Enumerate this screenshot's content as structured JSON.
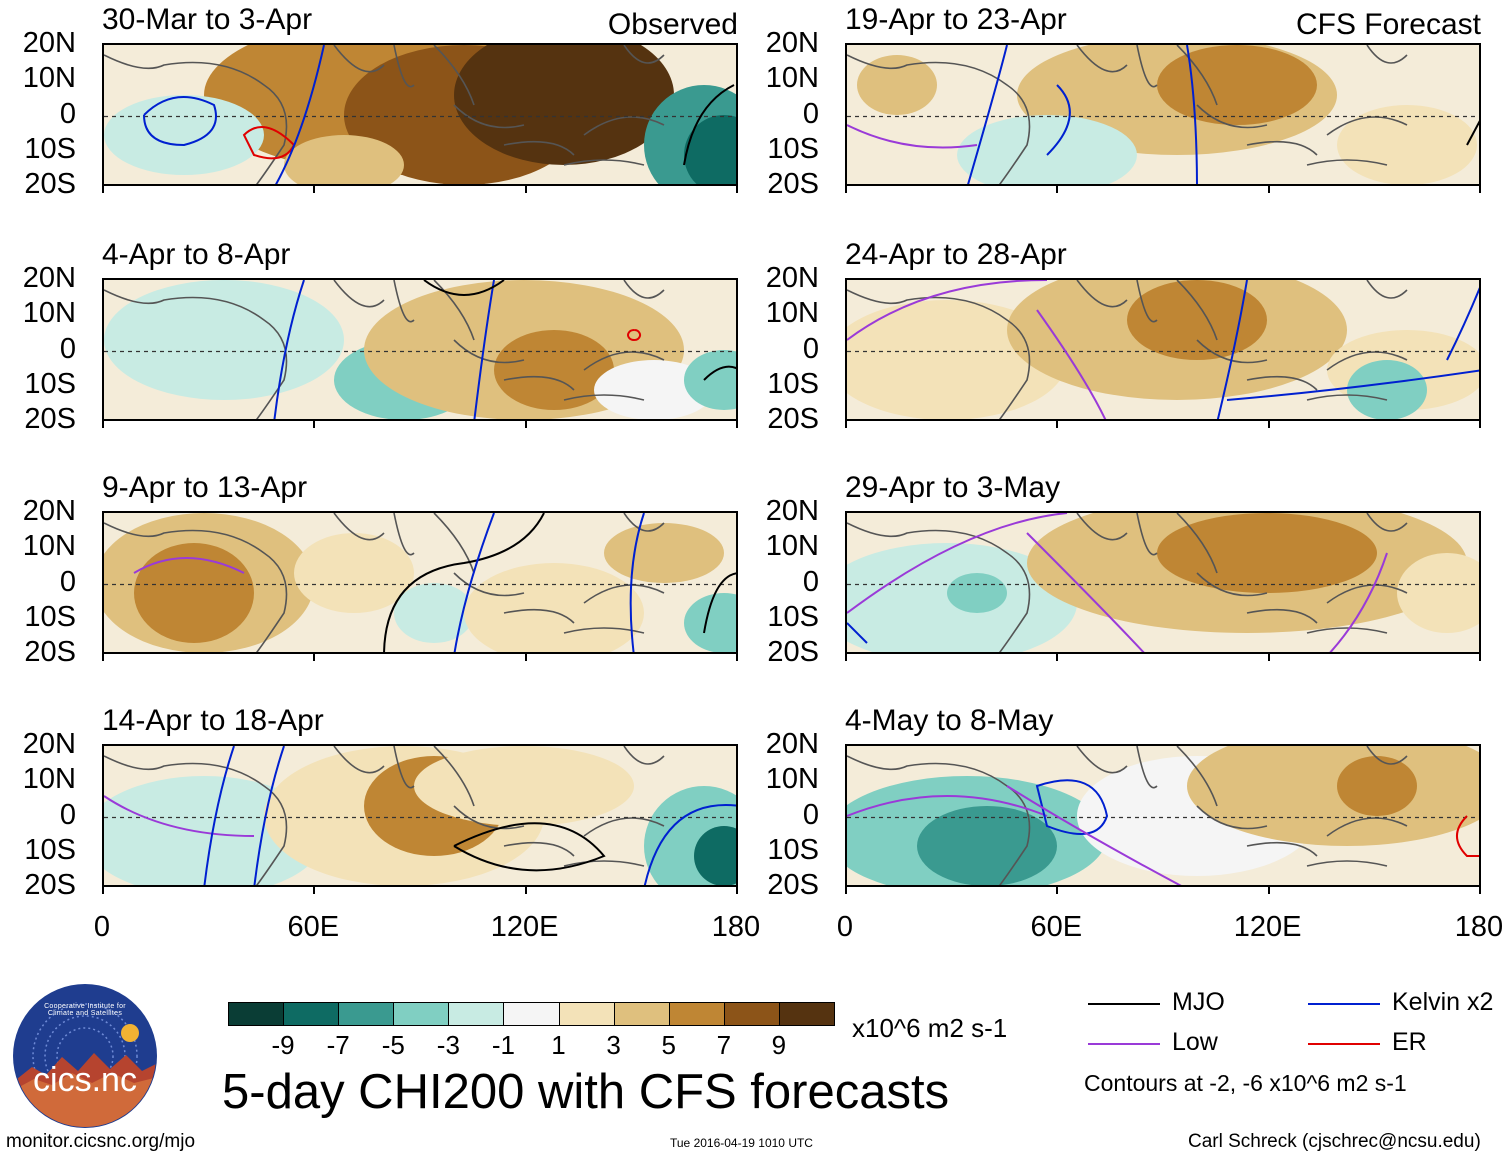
{
  "panels": [
    {
      "title": "30-Mar to 3-Apr",
      "tag": "Observed"
    },
    {
      "title": "4-Apr to 8-Apr",
      "tag": ""
    },
    {
      "title": "9-Apr to 13-Apr",
      "tag": ""
    },
    {
      "title": "14-Apr to 18-Apr",
      "tag": ""
    },
    {
      "title": "19-Apr to 23-Apr",
      "tag": "CFS Forecast"
    },
    {
      "title": "24-Apr to 28-Apr",
      "tag": ""
    },
    {
      "title": "29-Apr to 3-May",
      "tag": ""
    },
    {
      "title": "4-May to 8-May",
      "tag": ""
    }
  ],
  "axes": {
    "lat_labels": [
      "20N",
      "10N",
      "0",
      "10S",
      "20S"
    ],
    "lon_labels": [
      "0",
      "60E",
      "120E",
      "180"
    ]
  },
  "colorbar": {
    "labels": [
      "-9",
      "-7",
      "-5",
      "-3",
      "-1",
      "1",
      "3",
      "5",
      "7",
      "9"
    ],
    "colors": [
      "#0a3d35",
      "#0e6b63",
      "#3a9a90",
      "#80cfc2",
      "#c8ebe3",
      "#f5f5f5",
      "#f3e2b8",
      "#dfc07e",
      "#bf8634",
      "#8c5418",
      "#553310"
    ],
    "units": "x10^6 m2 s-1"
  },
  "legend": {
    "items": [
      {
        "label": "MJO",
        "color": "#000000"
      },
      {
        "label": "Kelvin x2",
        "color": "#0020d0"
      },
      {
        "label": "Low",
        "color": "#9a3ad8"
      },
      {
        "label": "ER",
        "color": "#e00000"
      }
    ],
    "contour_note": "Contours at -2, -6 x10^6 m2 s-1"
  },
  "logo": {
    "text": "cics.nc",
    "ring_text": "Cooperative Institute for Climate and Satellites"
  },
  "main_title": "5-day CHI200 with CFS forecasts",
  "footer": {
    "left": "monitor.cicsnc.org/mjo",
    "center": "Tue 2016-04-19 1010 UTC",
    "right": "Carl Schreck (cjschrec@ncsu.edu)"
  }
}
